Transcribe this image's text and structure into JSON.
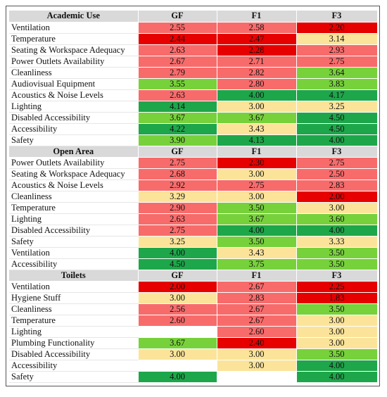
{
  "colors": {
    "red": "#e60000",
    "lightred": "#f86b6b",
    "yellow": "#fbe49a",
    "lightgreen": "#77d13b",
    "green": "#1ea64a",
    "blank": "#ffffff",
    "header": "#d9d9d9"
  },
  "sections": [
    {
      "title": "Academic Use",
      "columns": [
        "GF",
        "F1",
        "F3"
      ],
      "rows": [
        {
          "label": "Ventilation",
          "cells": [
            [
              "2.55",
              "lightred"
            ],
            [
              "2.58",
              "lightred"
            ],
            [
              "2.20",
              "red"
            ]
          ]
        },
        {
          "label": "Temperature",
          "cells": [
            [
              "2.44",
              "red"
            ],
            [
              "2.47",
              "red"
            ],
            [
              "3.14",
              "yellow"
            ]
          ]
        },
        {
          "label": "Seating & Workspace Adequacy",
          "cells": [
            [
              "2.63",
              "lightred"
            ],
            [
              "2.28",
              "red"
            ],
            [
              "2.93",
              "lightred"
            ]
          ]
        },
        {
          "label": "Power Outlets Availability",
          "cells": [
            [
              "2.67",
              "lightred"
            ],
            [
              "2.71",
              "lightred"
            ],
            [
              "2.75",
              "lightred"
            ]
          ]
        },
        {
          "label": "Cleanliness",
          "cells": [
            [
              "2.79",
              "lightred"
            ],
            [
              "2.82",
              "lightred"
            ],
            [
              "3.64",
              "lightgreen"
            ]
          ]
        },
        {
          "label": "Audiovisual Equipment",
          "cells": [
            [
              "3.55",
              "lightgreen"
            ],
            [
              "2.80",
              "lightred"
            ],
            [
              "3.83",
              "lightgreen"
            ]
          ]
        },
        {
          "label": "Acoustics & Noise Levels",
          "cells": [
            [
              "2.63",
              "lightred"
            ],
            [
              "4.00",
              "green"
            ],
            [
              "4.17",
              "green"
            ]
          ]
        },
        {
          "label": "Lighting",
          "cells": [
            [
              "4.14",
              "green"
            ],
            [
              "3.00",
              "yellow"
            ],
            [
              "3.25",
              "yellow"
            ]
          ]
        },
        {
          "label": "Disabled Accessibility",
          "cells": [
            [
              "3.67",
              "lightgreen"
            ],
            [
              "3.67",
              "lightgreen"
            ],
            [
              "4.50",
              "green"
            ]
          ]
        },
        {
          "label": "Accessibility",
          "cells": [
            [
              "4.22",
              "green"
            ],
            [
              "3.43",
              "yellow"
            ],
            [
              "4.50",
              "green"
            ]
          ]
        },
        {
          "label": "Safety",
          "cells": [
            [
              "3.90",
              "lightgreen"
            ],
            [
              "4.13",
              "green"
            ],
            [
              "4.00",
              "green"
            ]
          ]
        }
      ]
    },
    {
      "title": "Open Area",
      "columns": [
        "GF",
        "F1",
        "F3"
      ],
      "rows": [
        {
          "label": "Power Outlets Availability",
          "cells": [
            [
              "2.75",
              "lightred"
            ],
            [
              "2.30",
              "red"
            ],
            [
              "2.75",
              "lightred"
            ]
          ]
        },
        {
          "label": "Seating & Workspace Adequacy",
          "cells": [
            [
              "2.68",
              "lightred"
            ],
            [
              "3.00",
              "yellow"
            ],
            [
              "2.50",
              "lightred"
            ]
          ]
        },
        {
          "label": "Acoustics & Noise Levels",
          "cells": [
            [
              "2.92",
              "lightred"
            ],
            [
              "2.75",
              "lightred"
            ],
            [
              "2.83",
              "lightred"
            ]
          ]
        },
        {
          "label": "Cleanliness",
          "cells": [
            [
              "3.29",
              "yellow"
            ],
            [
              "3.00",
              "yellow"
            ],
            [
              "2.00",
              "red"
            ]
          ]
        },
        {
          "label": "Temperature",
          "cells": [
            [
              "2.90",
              "lightred"
            ],
            [
              "3.50",
              "lightgreen"
            ],
            [
              "3.00",
              "yellow"
            ]
          ]
        },
        {
          "label": "Lighting",
          "cells": [
            [
              "2.63",
              "lightred"
            ],
            [
              "3.67",
              "lightgreen"
            ],
            [
              "3.60",
              "lightgreen"
            ]
          ]
        },
        {
          "label": "Disabled Accessibility",
          "cells": [
            [
              "2.75",
              "lightred"
            ],
            [
              "4.00",
              "green"
            ],
            [
              "4.00",
              "green"
            ]
          ]
        },
        {
          "label": "Safety",
          "cells": [
            [
              "3.25",
              "yellow"
            ],
            [
              "3.50",
              "lightgreen"
            ],
            [
              "3.33",
              "yellow"
            ]
          ]
        },
        {
          "label": "Ventilation",
          "cells": [
            [
              "4.00",
              "green"
            ],
            [
              "3.43",
              "yellow"
            ],
            [
              "3.50",
              "lightgreen"
            ]
          ]
        },
        {
          "label": "Accessibility",
          "cells": [
            [
              "4.50",
              "green"
            ],
            [
              "3.75",
              "lightgreen"
            ],
            [
              "3.50",
              "lightgreen"
            ]
          ]
        }
      ]
    },
    {
      "title": "Toilets",
      "columns": [
        "GF",
        "F1",
        "F3"
      ],
      "rows": [
        {
          "label": "Ventilation",
          "cells": [
            [
              "2.00",
              "red"
            ],
            [
              "2.67",
              "lightred"
            ],
            [
              "2.25",
              "red"
            ]
          ]
        },
        {
          "label": "Hygiene Stuff",
          "cells": [
            [
              "3.00",
              "yellow"
            ],
            [
              "2.83",
              "lightred"
            ],
            [
              "1.83",
              "red"
            ]
          ]
        },
        {
          "label": "Cleanliness",
          "cells": [
            [
              "2.56",
              "lightred"
            ],
            [
              "2.67",
              "lightred"
            ],
            [
              "3.50",
              "lightgreen"
            ]
          ]
        },
        {
          "label": "Temperature",
          "cells": [
            [
              "2.60",
              "lightred"
            ],
            [
              "2.67",
              "lightred"
            ],
            [
              "3.00",
              "yellow"
            ]
          ]
        },
        {
          "label": "Lighting",
          "cells": [
            [
              "",
              "blank"
            ],
            [
              "2.60",
              "lightred"
            ],
            [
              "3.00",
              "yellow"
            ]
          ]
        },
        {
          "label": "Plumbing Functionality",
          "cells": [
            [
              "3.67",
              "lightgreen"
            ],
            [
              "2.40",
              "red"
            ],
            [
              "3.00",
              "yellow"
            ]
          ]
        },
        {
          "label": "Disabled Accessibility",
          "cells": [
            [
              "3.00",
              "yellow"
            ],
            [
              "3.00",
              "yellow"
            ],
            [
              "3.50",
              "lightgreen"
            ]
          ]
        },
        {
          "label": "Accessibility",
          "cells": [
            [
              "",
              "blank"
            ],
            [
              "3.00",
              "yellow"
            ],
            [
              "4.00",
              "green"
            ]
          ]
        },
        {
          "label": "Safety",
          "cells": [
            [
              "4.00",
              "green"
            ],
            [
              "",
              "blank"
            ],
            [
              "4.00",
              "green"
            ]
          ]
        }
      ]
    }
  ]
}
